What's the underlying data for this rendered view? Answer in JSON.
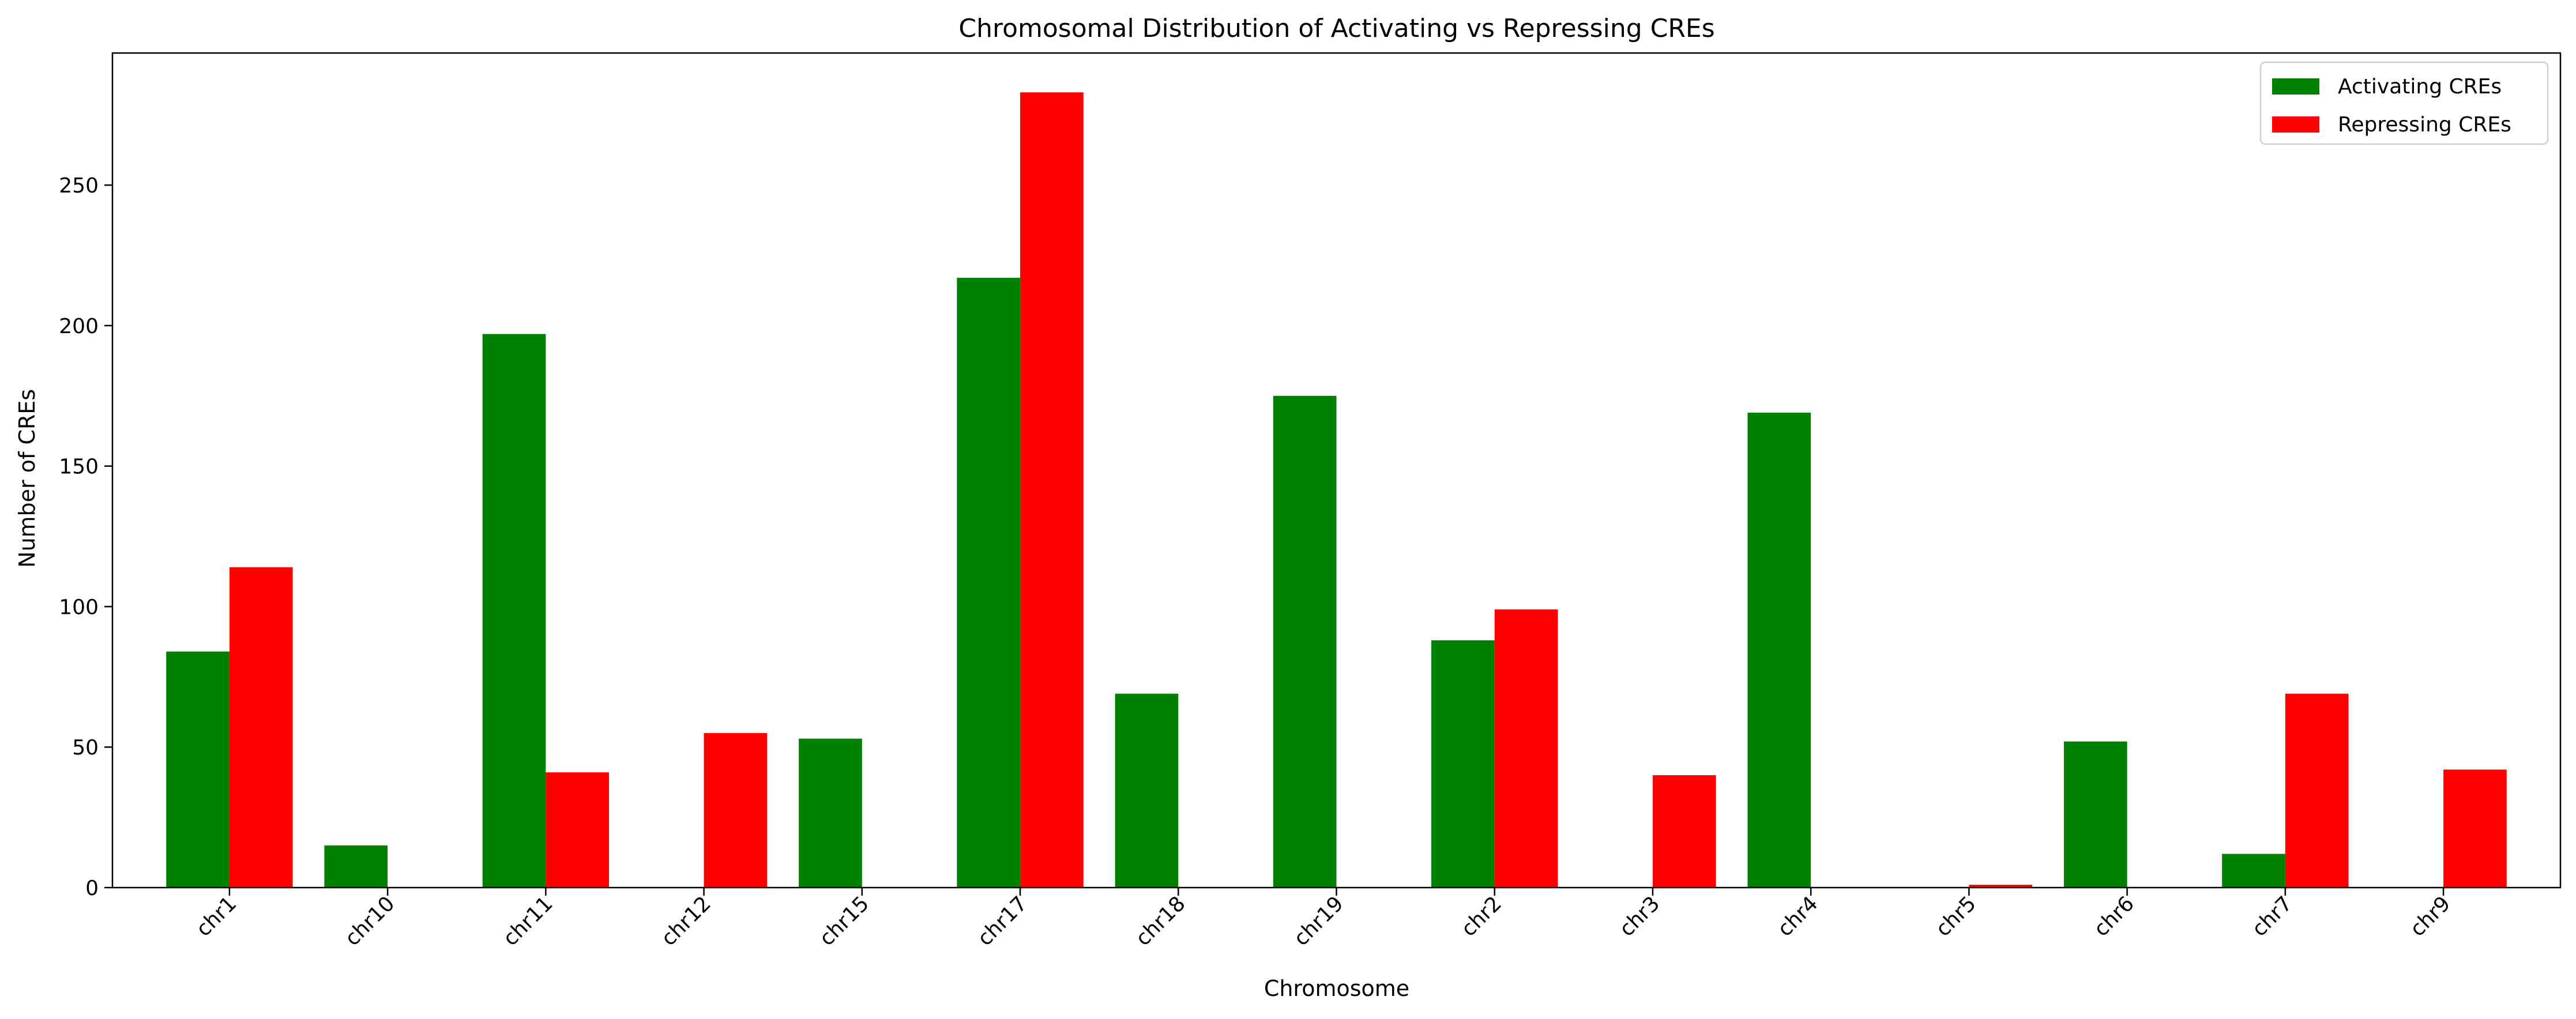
{
  "chart_data": {
    "type": "bar",
    "title": "Chromosomal Distribution of Activating vs Repressing CREs",
    "xlabel": "Chromosome",
    "ylabel": "Number of CREs",
    "categories": [
      "chr1",
      "chr10",
      "chr11",
      "chr12",
      "chr15",
      "chr17",
      "chr18",
      "chr19",
      "chr2",
      "chr3",
      "chr4",
      "chr5",
      "chr6",
      "chr7",
      "chr9"
    ],
    "series": [
      {
        "name": "Activating CREs",
        "color": "#008000",
        "values": [
          84,
          15,
          197,
          0,
          53,
          217,
          69,
          175,
          88,
          0,
          169,
          0,
          52,
          12,
          0
        ]
      },
      {
        "name": "Repressing CREs",
        "color": "#ff0000",
        "values": [
          114,
          0,
          41,
          55,
          0,
          283,
          0,
          0,
          99,
          40,
          0,
          1,
          0,
          69,
          42
        ]
      }
    ],
    "ylim": [
      0,
      297
    ],
    "yticks": [
      0,
      50,
      100,
      150,
      200,
      250
    ],
    "grid": false,
    "legend_position": "top-right"
  }
}
